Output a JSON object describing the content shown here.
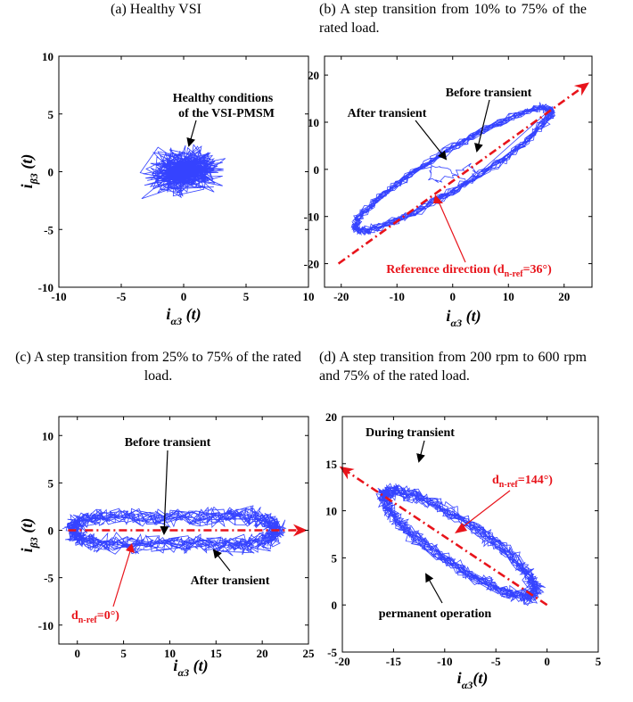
{
  "chart_data": [
    {
      "id": "a",
      "type": "scatter",
      "caption": "(a) Healthy VSI",
      "xlabel_main": "i",
      "xlabel_sub": "α3",
      "xlabel_tail": " (t)",
      "ylabel_main": "i",
      "ylabel_sub": "β3",
      "ylabel_tail": " (t)",
      "xlim": [
        -10,
        10
      ],
      "ylim": [
        -10,
        10
      ],
      "xticks": [
        -10,
        -5,
        0,
        5,
        10
      ],
      "yticks": [
        -10,
        -5,
        0,
        5,
        10
      ],
      "line_color": "#1f2fff",
      "annotations": [
        {
          "text": "Healthy conditions"
        },
        {
          "text": "of the VSI-PMSM"
        }
      ],
      "cluster": {
        "center": [
          0,
          0
        ],
        "radius": [
          3.0,
          2.0
        ]
      }
    },
    {
      "id": "b",
      "type": "line",
      "caption": "(b) A step transition from 10% to 75% of the rated load.",
      "xlabel_main": "i",
      "xlabel_sub": "α3",
      "xlabel_tail": " (t)",
      "ylabel_main": "",
      "ylabel_sub": "",
      "ylabel_tail": "",
      "xlim": [
        -23,
        25
      ],
      "ylim": [
        -25,
        24
      ],
      "xticks": [
        -20,
        -10,
        0,
        10,
        20
      ],
      "yticks": [
        -20,
        -10,
        0,
        10,
        20
      ],
      "line_color": "#1f2fff",
      "annotations": [
        {
          "text": "Before transient"
        },
        {
          "text": "After transient"
        },
        {
          "text": "Reference direction (d",
          "sub": "n-ref",
          "tail": "=36°)"
        }
      ],
      "reference": {
        "angle_deg": 36,
        "from": [
          -20.5,
          -20
        ],
        "to": [
          24,
          18
        ]
      }
    },
    {
      "id": "c",
      "type": "line",
      "caption": "(c) A step transition from 25% to 75% of the rated load.",
      "xlabel_main": "i",
      "xlabel_sub": "α3",
      "xlabel_tail": " (t)",
      "ylabel_main": "i",
      "ylabel_sub": "β3",
      "ylabel_tail": " (t)",
      "xlim": [
        -2,
        25
      ],
      "ylim": [
        -12,
        12
      ],
      "xticks": [
        0,
        5,
        10,
        15,
        20,
        25
      ],
      "yticks": [
        -10,
        -5,
        0,
        5,
        10
      ],
      "line_color": "#1f2fff",
      "annotations": [
        {
          "text": "Before transient"
        },
        {
          "text": "After transient"
        },
        {
          "text": "d",
          "sub": "n-ref",
          "tail": "=0°)"
        }
      ],
      "reference": {
        "angle_deg": 0,
        "from": [
          -1,
          0
        ],
        "to": [
          24.5,
          0
        ]
      }
    },
    {
      "id": "d",
      "type": "line",
      "caption": "(d) A step transition from 200 rpm to 600 rpm and 75% of the rated load.",
      "xlabel_main": "i",
      "xlabel_sub": "α3",
      "xlabel_tail": "(t)",
      "ylabel_main": "",
      "ylabel_sub": "",
      "ylabel_tail": "",
      "xlim": [
        -20,
        5
      ],
      "ylim": [
        -5,
        20
      ],
      "xticks": [
        -20,
        -15,
        -10,
        -5,
        0,
        5
      ],
      "yticks": [
        -5,
        0,
        5,
        10,
        15,
        20
      ],
      "line_color": "#1f2fff",
      "annotations": [
        {
          "text": "During transient"
        },
        {
          "text": "d",
          "sub": "n-ref",
          "tail": "=144°)"
        },
        {
          "text": "permanent operation"
        }
      ],
      "reference": {
        "angle_deg": 144,
        "from": [
          0,
          0
        ],
        "to": [
          -20,
          14.5
        ]
      }
    }
  ]
}
